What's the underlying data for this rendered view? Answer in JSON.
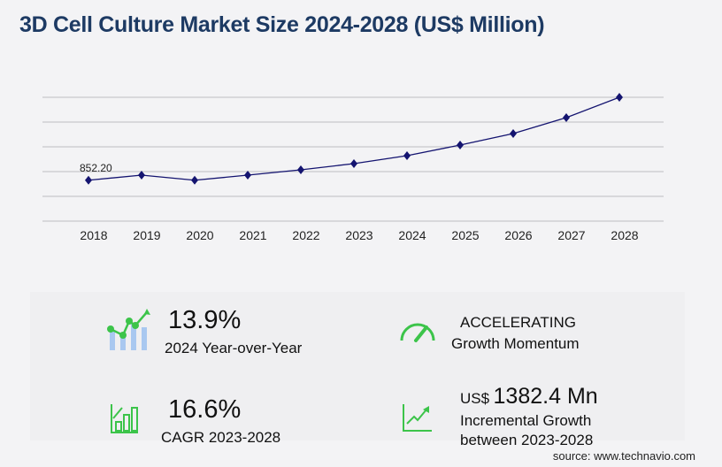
{
  "title": "3D Cell Culture Market Size 2024-2028 (US$ Million)",
  "chart_data": {
    "type": "line",
    "title": "3D Cell Culture Market Size 2024-2028 (US$ Million)",
    "categories": [
      "2018",
      "2019",
      "2020",
      "2021",
      "2022",
      "2023",
      "2024",
      "2025",
      "2026",
      "2027",
      "2028"
    ],
    "values": [
      852.2,
      958,
      852,
      958,
      1069,
      1198,
      1364,
      1585,
      1825,
      2156,
      2580
    ],
    "data_labels": {
      "2018": "852.20"
    },
    "ylim": [
      0,
      2580
    ],
    "grid": true,
    "color": "#141470"
  },
  "stats": {
    "yoy_value": "13.9%",
    "yoy_label": "2024 Year-over-Year",
    "momentum_value": "ACCELERATING",
    "momentum_label": "Growth Momentum",
    "cagr_value": "16.6%",
    "cagr_label": "CAGR 2023-2028",
    "incr_prefix": "US$",
    "incr_value": "1382.4 Mn",
    "incr_label1": "Incremental Growth",
    "incr_label2": "between 2023-2028"
  },
  "source": "source: www.technavio.com"
}
